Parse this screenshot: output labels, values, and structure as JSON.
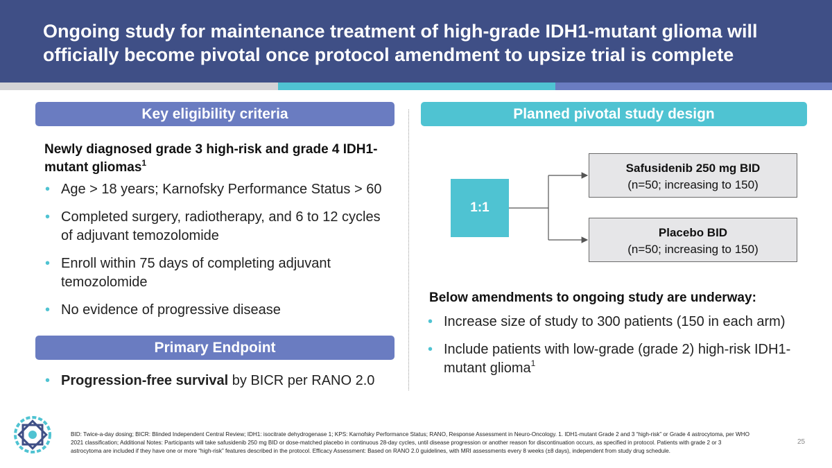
{
  "header": {
    "title": "Ongoing study for maintenance treatment of high-grade IDH1-mutant glioma will officially become pivotal once protocol amendment to upsize trial is complete"
  },
  "left": {
    "eligibility_label": "Key eligibility criteria",
    "subhead": "Newly diagnosed grade 3 high-risk and grade 4 IDH1-mutant gliomas",
    "subhead_sup": "1",
    "criteria": [
      "Age > 18 years; Karnofsky Performance Status > 60",
      "Completed surgery, radiotherapy, and 6 to 12 cycles of adjuvant temozolomide",
      "Enroll within 75 days of completing adjuvant temozolomide",
      "No evidence of progressive disease"
    ],
    "endpoint_label": "Primary Endpoint",
    "endpoint_bold": "Progression-free survival",
    "endpoint_rest": " by BICR per RANO 2.0"
  },
  "right": {
    "design_label": "Planned pivotal study design",
    "ratio": "1:1",
    "arms": [
      {
        "title": "Safusidenib 250 mg BID",
        "sub": "(n=50; increasing to 150)"
      },
      {
        "title": "Placebo BID",
        "sub": "(n=50; increasing to 150)"
      }
    ],
    "amend_head": "Below amendments to ongoing study are underway:",
    "amendments": [
      "Increase size of study to 300 patients (150 in each arm)",
      "Include patients with low-grade (grade 2) high-risk IDH1-mutant glioma"
    ],
    "amendment_sup": "1"
  },
  "footer": {
    "footnote": "BID: Twice-a-day dosing; BICR: Blinded Independent Central Review; IDH1: isocitrate dehydrogenase 1; KPS: Karnofsky Performance Status; RANO, Response Assessment in Neuro-Oncology. 1. IDH1-mutant Grade 2 and 3 “high-risk” or Grade 4 astrocytoma, per WHO 2021 classification; Additional Notes: Participants will take safusidenib 250 mg BID or dose-matched placebo in continuous 28-day cycles, until disease progression or another reason for discontinuation occurs, as specified in protocol. Patients with grade 2 or 3 astrocytoma are included if they have one or more “high-risk” features described in the protocol. Efficacy Assessment: Based on RANO 2.0 guidelines, with MRI assessments every 8 weeks (±8 days), independent from study drug schedule.",
    "page_number": "25"
  },
  "colors": {
    "header_bg": "#3f4f86",
    "accent_blue": "#6a7cc1",
    "accent_teal": "#4fc3d2",
    "stripe_gray": "#d3d3d6"
  },
  "icons": {
    "logo": "geometric-star-logo-icon"
  }
}
